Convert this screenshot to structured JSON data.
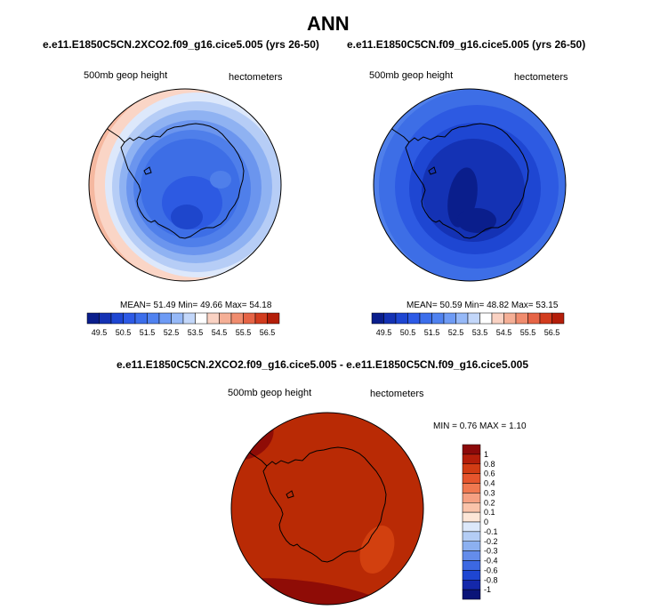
{
  "figure": {
    "title": "ANN"
  },
  "panels": [
    {
      "subtitle": "e.e11.E1850C5CN.2XCO2.f09_g16.cice5.005 (yrs 26-50)",
      "field_label": "500mb geop height",
      "units_label": "hectometers",
      "stats": {
        "mean_label": "MEAN=",
        "mean": "51.49",
        "min_label": "Min=",
        "min": "49.66",
        "max_label": "Max=",
        "max": "54.18"
      }
    },
    {
      "subtitle": "e.e11.E1850C5CN.f09_g16.cice5.005 (yrs 26-50)",
      "field_label": "500mb geop height",
      "units_label": "hectometers",
      "stats": {
        "mean_label": "MEAN=",
        "mean": "50.59",
        "min_label": "Min=",
        "min": "48.82",
        "max_label": "Max=",
        "max": "53.15"
      }
    },
    {
      "subtitle": "e.e11.E1850C5CN.2XCO2.f09_g16.cice5.005 - e.e11.E1850C5CN.f09_g16.cice5.005",
      "field_label": "500mb geop height",
      "units_label": "hectometers",
      "stats": {
        "min_label": "MIN =",
        "min": "0.76",
        "max_label": "MAX =",
        "max": "1.10"
      }
    }
  ],
  "chart_data": [
    {
      "type": "heatmap",
      "projection": "south-polar-stereographic",
      "title": "e.e11.E1850C5CN.2XCO2.f09_g16.cice5.005 (yrs 26-50)",
      "variable": "500mb geop height",
      "units": "hectometers",
      "mean": 51.49,
      "min": 49.66,
      "max": 54.18,
      "colorbar": {
        "orientation": "horizontal",
        "tick_labels": [
          "49.5",
          "50.5",
          "51.5",
          "52.5",
          "53.5",
          "54.5",
          "55.5",
          "56.5"
        ],
        "levels": [
          49.5,
          50.0,
          50.5,
          51.0,
          51.5,
          52.0,
          52.5,
          53.0,
          53.5,
          54.0,
          54.5,
          55.0,
          55.5,
          56.0,
          56.5
        ],
        "colors": [
          "#0a1e8c",
          "#1432b4",
          "#1e46d2",
          "#2d5ae6",
          "#3c6eeb",
          "#5082f0",
          "#6e9bf5",
          "#96b9f8",
          "#c3d7fa",
          "#ffffff",
          "#fad2c3",
          "#f5af96",
          "#f08c6e",
          "#e66446",
          "#d23c1e",
          "#b41e0a"
        ]
      }
    },
    {
      "type": "heatmap",
      "projection": "south-polar-stereographic",
      "title": "e.e11.E1850C5CN.f09_g16.cice5.005 (yrs 26-50)",
      "variable": "500mb geop height",
      "units": "hectometers",
      "mean": 50.59,
      "min": 48.82,
      "max": 53.15,
      "colorbar": {
        "orientation": "horizontal",
        "tick_labels": [
          "49.5",
          "50.5",
          "51.5",
          "52.5",
          "53.5",
          "54.5",
          "55.5",
          "56.5"
        ],
        "levels": [
          49.5,
          50.0,
          50.5,
          51.0,
          51.5,
          52.0,
          52.5,
          53.0,
          53.5,
          54.0,
          54.5,
          55.0,
          55.5,
          56.0,
          56.5
        ],
        "colors": [
          "#0a1e8c",
          "#1432b4",
          "#1e46d2",
          "#2d5ae6",
          "#3c6eeb",
          "#5082f0",
          "#6e9bf5",
          "#96b9f8",
          "#c3d7fa",
          "#ffffff",
          "#fad2c3",
          "#f5af96",
          "#f08c6e",
          "#e66446",
          "#d23c1e",
          "#b41e0a"
        ]
      }
    },
    {
      "type": "heatmap",
      "projection": "south-polar-stereographic",
      "title": "e.e11.E1850C5CN.2XCO2.f09_g16.cice5.005 - e.e11.E1850C5CN.f09_g16.cice5.005",
      "variable": "500mb geop height",
      "units": "hectometers",
      "min": 0.76,
      "max": 1.1,
      "colorbar": {
        "orientation": "vertical",
        "tick_labels": [
          "1",
          "0.8",
          "0.6",
          "0.4",
          "0.3",
          "0.2",
          "0.1",
          "0",
          "-0.1",
          "-0.2",
          "-0.3",
          "-0.4",
          "-0.6",
          "-0.8",
          "-1"
        ],
        "colors": [
          "#8c0a0a",
          "#b41e0a",
          "#d23c14",
          "#e6552d",
          "#f07850",
          "#f5a082",
          "#fac3aa",
          "#fde6d7",
          "#dce8fa",
          "#b4cdf5",
          "#8cb0f0",
          "#648cea",
          "#3c68e2",
          "#1e46d2",
          "#1428aa",
          "#0a1478"
        ]
      }
    }
  ],
  "colors": {
    "coastline": "#000000",
    "diff_fill": "#b92a05",
    "diff_high": "#8f0c06",
    "diff_patch": "#d2400f"
  }
}
